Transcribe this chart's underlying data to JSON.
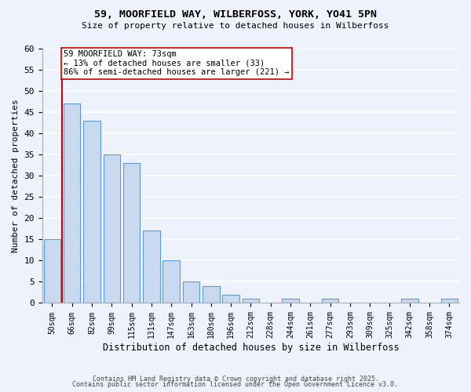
{
  "title_line1": "59, MOORFIELD WAY, WILBERFOSS, YORK, YO41 5PN",
  "title_line2": "Size of property relative to detached houses in Wilberfoss",
  "xlabel": "Distribution of detached houses by size in Wilberfoss",
  "ylabel": "Number of detached properties",
  "bin_labels": [
    "50sqm",
    "66sqm",
    "82sqm",
    "99sqm",
    "115sqm",
    "131sqm",
    "147sqm",
    "163sqm",
    "180sqm",
    "196sqm",
    "212sqm",
    "228sqm",
    "244sqm",
    "261sqm",
    "277sqm",
    "293sqm",
    "309sqm",
    "325sqm",
    "342sqm",
    "358sqm",
    "374sqm"
  ],
  "bar_values": [
    15,
    47,
    43,
    35,
    33,
    17,
    10,
    5,
    4,
    2,
    1,
    0,
    1,
    0,
    1,
    0,
    0,
    0,
    1,
    0,
    1
  ],
  "bar_color": "#c9d9f0",
  "bar_edge_color": "#5b9bd5",
  "annotation_text": "59 MOORFIELD WAY: 73sqm\n← 13% of detached houses are smaller (33)\n86% of semi-detached houses are larger (221) →",
  "vline_x": 0.5,
  "vline_color": "#cc0000",
  "annotation_box_color": "#ffffff",
  "annotation_box_edge_color": "#cc0000",
  "ylim": [
    0,
    60
  ],
  "yticks": [
    0,
    5,
    10,
    15,
    20,
    25,
    30,
    35,
    40,
    45,
    50,
    55,
    60
  ],
  "background_color": "#eef2fc",
  "grid_color": "#ffffff",
  "footer_line1": "Contains HM Land Registry data © Crown copyright and database right 2025.",
  "footer_line2": "Contains public sector information licensed under the Open Government Licence v3.0."
}
